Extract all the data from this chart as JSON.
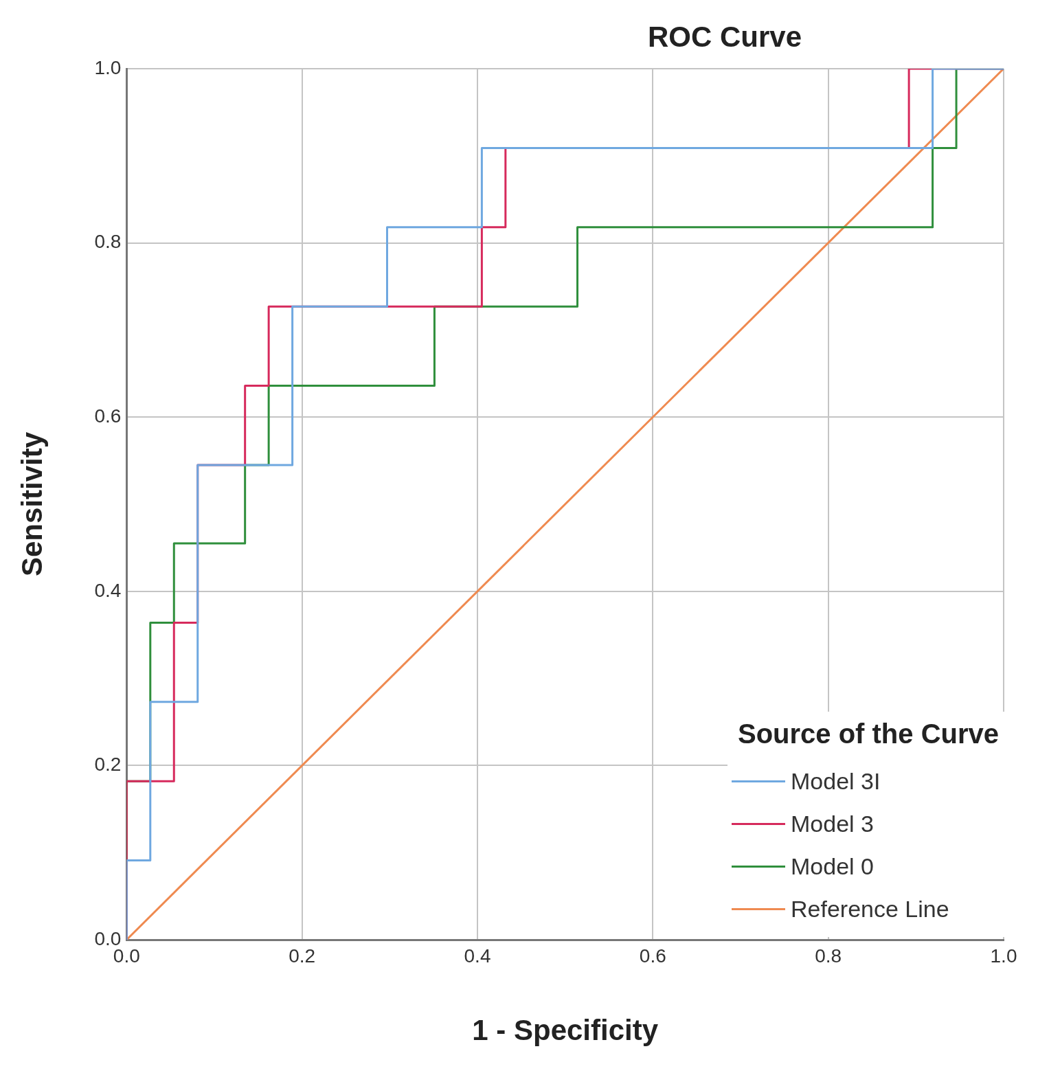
{
  "chart_data": {
    "type": "step",
    "title": "ROC Curve",
    "xlabel": "1 - Specificity",
    "ylabel": "Sensitivity",
    "legend_title": "Source of the Curve",
    "series": [
      {
        "name": "Model 3I",
        "color": "#6fa8e0",
        "x": [
          0,
          0,
          0.027,
          0.081,
          0.189,
          0.297,
          0.405,
          0.919,
          1
        ],
        "values": [
          0,
          0.091,
          0.273,
          0.545,
          0.727,
          0.818,
          0.909,
          1,
          1
        ]
      },
      {
        "name": "Model 3",
        "color": "#d62a5c",
        "x": [
          0,
          0,
          0.054,
          0.081,
          0.135,
          0.162,
          0.405,
          0.432,
          0.892,
          1
        ],
        "values": [
          0,
          0.182,
          0.364,
          0.545,
          0.636,
          0.727,
          0.818,
          0.909,
          1,
          1
        ]
      },
      {
        "name": "Model 0",
        "color": "#2f8f3c",
        "x": [
          0,
          0,
          0.027,
          0.054,
          0.135,
          0.162,
          0.351,
          0.514,
          0.919,
          0.946,
          1
        ],
        "values": [
          0,
          0.182,
          0.364,
          0.455,
          0.545,
          0.636,
          0.727,
          0.818,
          0.909,
          1,
          1
        ]
      },
      {
        "name": "Reference Line",
        "type": "line",
        "color": "#ef8a50",
        "x": [
          0,
          1
        ],
        "values": [
          0,
          1
        ]
      }
    ],
    "xlim": [
      0,
      1
    ],
    "ylim": [
      0,
      1
    ],
    "xticks": [
      {
        "value": 0,
        "label": "0.0"
      },
      0.2,
      0.4,
      0.6,
      0.8,
      {
        "value": 1,
        "label": "1.0"
      }
    ],
    "yticks": [
      {
        "value": 0,
        "label": "0.0"
      },
      0.2,
      0.4,
      0.6,
      0.8,
      {
        "value": 1,
        "label": "1.0"
      }
    ],
    "grid": true,
    "legend": "bottom right"
  }
}
